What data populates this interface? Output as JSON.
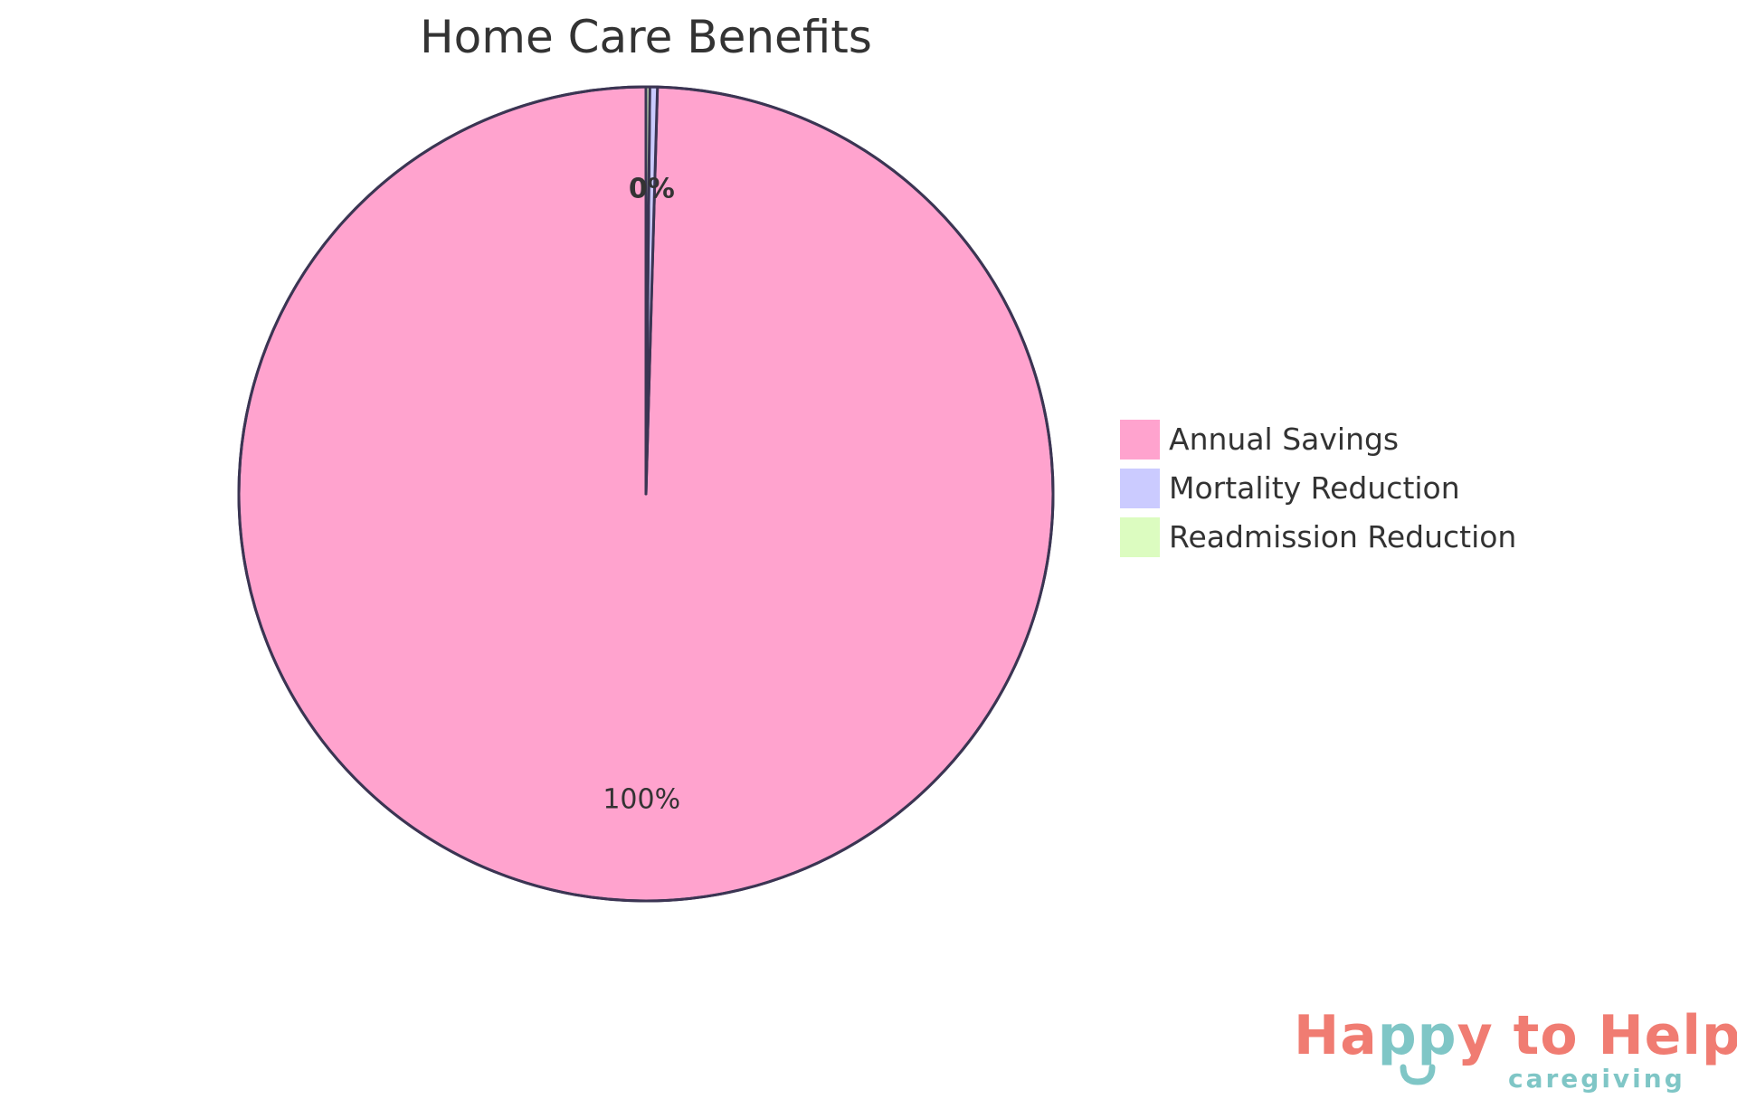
{
  "chart_data": {
    "type": "pie",
    "title": "Home Care Benefits",
    "slices": [
      {
        "label": "Annual Savings",
        "value": 99.55,
        "color": "#ffa3ce",
        "display_label": "100%"
      },
      {
        "label": "Mortality Reduction",
        "value": 0.3,
        "color": "#cbcbff",
        "display_label": "0%"
      },
      {
        "label": "Readmission Reduction",
        "value": 0.15,
        "color": "#dcfcc0",
        "display_label": ""
      }
    ],
    "start_angle_deg": 0,
    "direction": "counterclockwise",
    "stroke_color": "#3b3553",
    "legend_position": "right"
  },
  "logo": {
    "text": "Happy to Help",
    "subtext": "caregiving",
    "colors": {
      "primary": "#f07c72",
      "accent": "#7fc6c6"
    }
  }
}
